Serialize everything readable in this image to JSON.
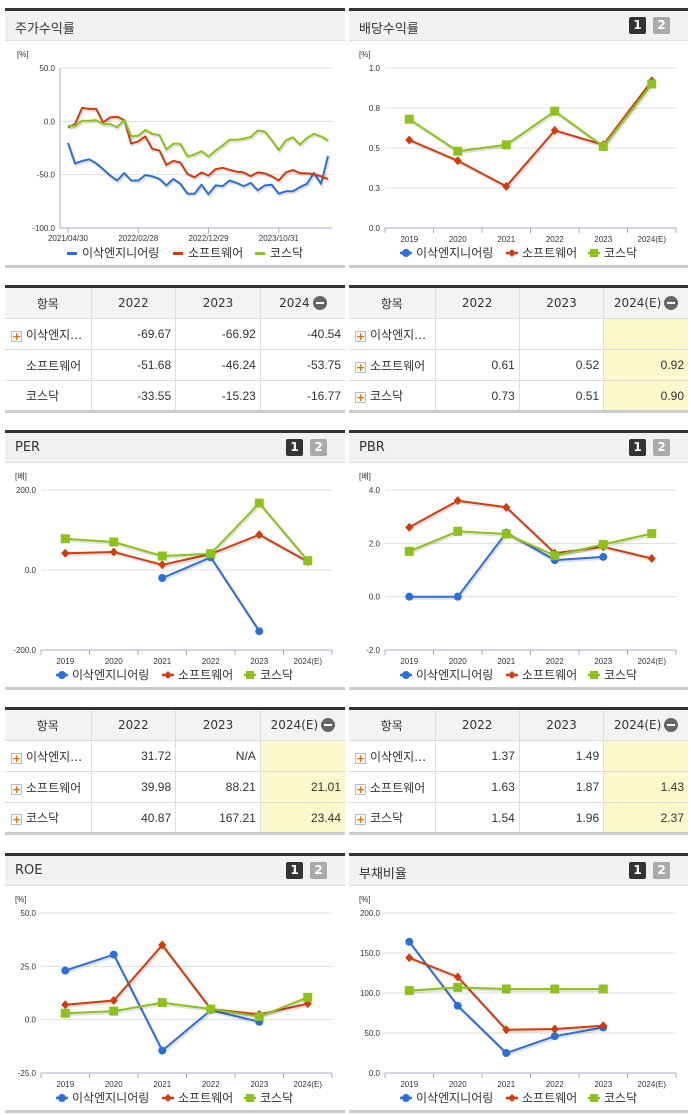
{
  "panels": {
    "stock": {
      "title": "주가수익률"
    },
    "dividend": {
      "title": "배당수익률",
      "btn1": "1",
      "btn2": "2"
    },
    "per": {
      "title": "PER",
      "btn1": "1",
      "btn2": "2"
    },
    "pbr": {
      "title": "PBR",
      "btn1": "1",
      "btn2": "2"
    },
    "roe": {
      "title": "ROE",
      "btn1": "1",
      "btn2": "2"
    },
    "debt": {
      "title": "부채비율",
      "btn1": "1",
      "btn2": "2"
    }
  },
  "colors": {
    "blue": "#2d6fd8",
    "red": "#d43a0a",
    "green": "#8cc21a"
  },
  "legend": [
    "이삭엔지니어링",
    "소프트웨어",
    "코스닥"
  ],
  "tables": {
    "stock": {
      "headers": [
        "항목",
        "2022",
        "2023",
        "2024"
      ],
      "rows": [
        {
          "name": "이삭엔지…",
          "plus": true,
          "values": [
            "-69.67",
            "-66.92",
            "-40.54"
          ]
        },
        {
          "name": "소프트웨어",
          "plus": false,
          "values": [
            "-51.68",
            "-46.24",
            "-53.75"
          ]
        },
        {
          "name": "코스닥",
          "plus": false,
          "values": [
            "-33.55",
            "-15.23",
            "-16.77"
          ]
        }
      ]
    },
    "dividend": {
      "headers": [
        "항목",
        "2022",
        "2023",
        "2024(E)"
      ],
      "rows": [
        {
          "name": "이삭엔지…",
          "plus": true,
          "values": [
            "",
            "",
            ""
          ]
        },
        {
          "name": "소프트웨어",
          "plus": true,
          "values": [
            "0.61",
            "0.52",
            "0.92"
          ]
        },
        {
          "name": "코스닥",
          "plus": true,
          "values": [
            "0.73",
            "0.51",
            "0.90"
          ]
        }
      ]
    },
    "per": {
      "headers": [
        "항목",
        "2022",
        "2023",
        "2024(E)"
      ],
      "rows": [
        {
          "name": "이삭엔지…",
          "plus": true,
          "values": [
            "31.72",
            "N/A",
            ""
          ]
        },
        {
          "name": "소프트웨어",
          "plus": true,
          "values": [
            "39.98",
            "88.21",
            "21.01"
          ]
        },
        {
          "name": "코스닥",
          "plus": true,
          "values": [
            "40.87",
            "167.21",
            "23.44"
          ]
        }
      ]
    },
    "pbr": {
      "headers": [
        "항목",
        "2022",
        "2023",
        "2024(E)"
      ],
      "rows": [
        {
          "name": "이삭엔지…",
          "plus": true,
          "values": [
            "1.37",
            "1.49",
            ""
          ]
        },
        {
          "name": "소프트웨어",
          "plus": true,
          "values": [
            "1.63",
            "1.87",
            "1.43"
          ]
        },
        {
          "name": "코스닥",
          "plus": true,
          "values": [
            "1.54",
            "1.96",
            "2.37"
          ]
        }
      ]
    }
  },
  "chart_data": [
    {
      "id": "stock",
      "type": "line",
      "title": "주가수익률",
      "ylabel": "[%]",
      "ylim": [
        -100,
        50
      ],
      "yticks": [
        "50.0",
        "0.0",
        "-50.0",
        "-100.0"
      ],
      "ytickvals": [
        50,
        0,
        -50,
        -100
      ],
      "xticks": [
        {
          "i": 0,
          "label": "2021/04/30"
        },
        {
          "i": 10,
          "label": "2022/02/28"
        },
        {
          "i": 20,
          "label": "2022/12/29"
        },
        {
          "i": 30,
          "label": "2023/10/31"
        }
      ],
      "n": 38,
      "series": [
        {
          "name": "이삭엔지니어링",
          "values": [
            -20.2,
            -39.6,
            -37.1,
            -35.6,
            -39.3,
            -44.8,
            -50.9,
            -55.5,
            -48.5,
            -55.5,
            -55.5,
            -50.3,
            -51.5,
            -54,
            -60.1,
            -54,
            -58.6,
            -67.8,
            -67.8,
            -59.5,
            -68.4,
            -60.1,
            -60.7,
            -55.5,
            -57.7,
            -60.7,
            -57.7,
            -64.7,
            -60.1,
            -59.5,
            -67.8,
            -65.6,
            -65.6,
            -61.7,
            -58.6,
            -48.5,
            -58.6,
            -32.5
          ]
        },
        {
          "name": "소프트웨어",
          "values": [
            -5.5,
            -2.5,
            12.6,
            11.7,
            11.7,
            -1,
            3.7,
            4.3,
            1.2,
            -20.9,
            -18.7,
            -14.1,
            -25.8,
            -27.3,
            -40.8,
            -37.1,
            -38.7,
            -49.4,
            -52.5,
            -47.9,
            -50.9,
            -44.8,
            -43.6,
            -45.4,
            -47.2,
            -47.9,
            -51.5,
            -47.9,
            -48.8,
            -51.5,
            -55.5,
            -47.9,
            -45.7,
            -48.5,
            -48.8,
            -49.4,
            -51.5,
            -54
          ]
        },
        {
          "name": "코스닥",
          "values": [
            -4.3,
            -4.3,
            0.6,
            0.6,
            1.2,
            -2.5,
            -2.5,
            -5.5,
            1.2,
            -14.1,
            -13.5,
            -8,
            -11.7,
            -12.9,
            -26.4,
            -20.9,
            -21.2,
            -33.1,
            -31,
            -27.9,
            -33.1,
            -27.3,
            -22.7,
            -17.2,
            -17.2,
            -16.3,
            -14.7,
            -8.6,
            -9.5,
            -17.8,
            -27,
            -17.8,
            -15,
            -21.8,
            -15.6,
            -11.7,
            -14.1,
            -17.8
          ]
        }
      ]
    },
    {
      "id": "dividend",
      "type": "line",
      "title": "배당수익률",
      "ylabel": "[%]",
      "ylim": [
        0,
        1
      ],
      "yticks": [
        "1.0",
        "0.8",
        "0.5",
        "0.3",
        "0.0"
      ],
      "ytickvals": [
        1,
        0.75,
        0.5,
        0.25,
        0
      ],
      "categories": [
        "2019",
        "2020",
        "2021",
        "2022",
        "2023",
        "2024(E)"
      ],
      "series": [
        {
          "name": "이삭엔지니어링",
          "values": [
            null,
            null,
            null,
            null,
            null,
            null
          ]
        },
        {
          "name": "소프트웨어",
          "values": [
            0.55,
            0.42,
            0.26,
            0.61,
            0.52,
            0.92
          ]
        },
        {
          "name": "코스닥",
          "values": [
            0.68,
            0.48,
            0.52,
            0.73,
            0.51,
            0.9
          ]
        }
      ]
    },
    {
      "id": "per",
      "type": "line",
      "title": "PER",
      "ylabel": "[배]",
      "ylim": [
        -200,
        200
      ],
      "yticks": [
        "200.0",
        "0.0",
        "-200.0"
      ],
      "ytickvals": [
        200,
        0,
        -200
      ],
      "categories": [
        "2019",
        "2020",
        "2021",
        "2022",
        "2023",
        "2024(E)"
      ],
      "series": [
        {
          "name": "이삭엔지니어링",
          "values": [
            null,
            null,
            -20,
            31.72,
            -153,
            null
          ]
        },
        {
          "name": "소프트웨어",
          "values": [
            42,
            45,
            13,
            39.98,
            88.21,
            21.01
          ]
        },
        {
          "name": "코스닥",
          "values": [
            78,
            70,
            35,
            40.87,
            167.21,
            23.44
          ]
        }
      ]
    },
    {
      "id": "pbr",
      "type": "line",
      "title": "PBR",
      "ylabel": "[배]",
      "ylim": [
        -2,
        4
      ],
      "yticks": [
        "4.0",
        "2.0",
        "0.0",
        "-2.0"
      ],
      "ytickvals": [
        4,
        2,
        0,
        -2
      ],
      "categories": [
        "2019",
        "2020",
        "2021",
        "2022",
        "2023",
        "2024(E)"
      ],
      "series": [
        {
          "name": "이삭엔지니어링",
          "values": [
            0,
            0,
            2.4,
            1.37,
            1.49,
            null
          ]
        },
        {
          "name": "소프트웨어",
          "values": [
            2.6,
            3.6,
            3.35,
            1.63,
            1.87,
            1.43
          ]
        },
        {
          "name": "코스닥",
          "values": [
            1.7,
            2.45,
            2.35,
            1.54,
            1.96,
            2.37
          ]
        }
      ]
    },
    {
      "id": "roe",
      "type": "line",
      "title": "ROE",
      "ylabel": "[%]",
      "ylim": [
        -25,
        50
      ],
      "yticks": [
        "50.0",
        "25.0",
        "0.0",
        "-25.0"
      ],
      "ytickvals": [
        50,
        25,
        0,
        -25
      ],
      "categories": [
        "2019",
        "2020",
        "2021",
        "2022",
        "2023",
        "2024(E)"
      ],
      "series": [
        {
          "name": "이삭엔지니어링",
          "values": [
            23,
            30.5,
            -14.5,
            4.5,
            -1,
            null
          ]
        },
        {
          "name": "소프트웨어",
          "values": [
            7,
            9,
            35,
            5,
            2.5,
            7.5
          ]
        },
        {
          "name": "코스닥",
          "values": [
            3,
            4,
            8,
            5,
            1.5,
            10.5
          ]
        }
      ]
    },
    {
      "id": "debt",
      "type": "line",
      "title": "부채비율",
      "ylabel": "[%]",
      "ylim": [
        0,
        200
      ],
      "yticks": [
        "200.0",
        "150.0",
        "100.0",
        "50.0",
        "0.0"
      ],
      "ytickvals": [
        200,
        150,
        100,
        50,
        0
      ],
      "categories": [
        "2019",
        "2020",
        "2021",
        "2022",
        "2023",
        "2024(E)"
      ],
      "series": [
        {
          "name": "이삭엔지니어링",
          "values": [
            164,
            84,
            25,
            46,
            57,
            null
          ]
        },
        {
          "name": "소프트웨어",
          "values": [
            144,
            120,
            54,
            55,
            59,
            null
          ]
        },
        {
          "name": "코스닥",
          "values": [
            103,
            107,
            105,
            105,
            105,
            null
          ]
        }
      ]
    }
  ]
}
